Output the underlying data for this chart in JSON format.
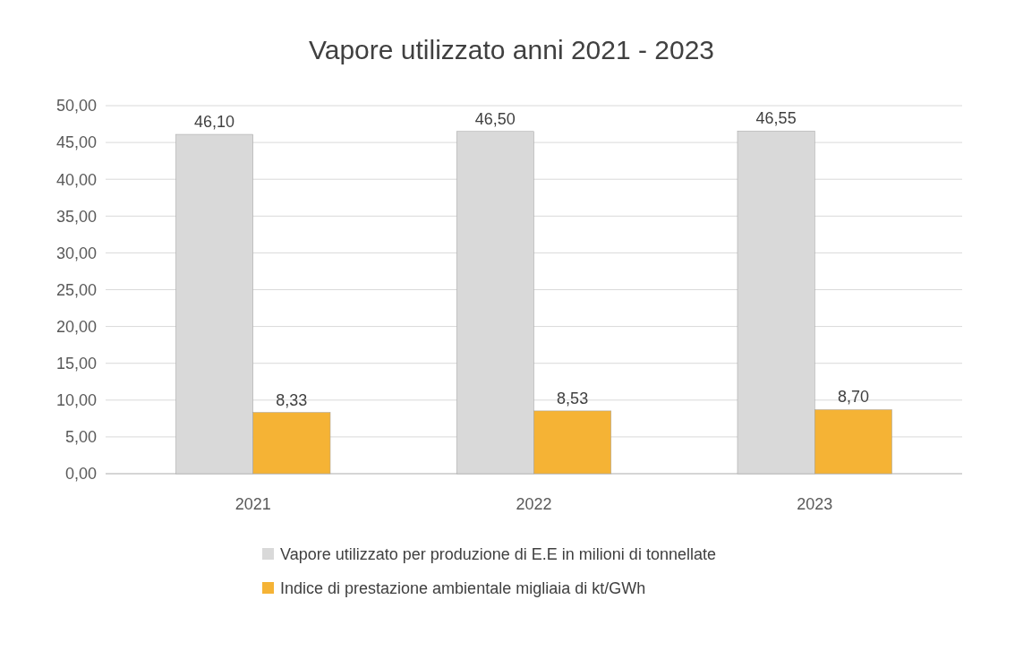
{
  "chart_data": {
    "type": "bar",
    "title": "Vapore utilizzato anni 2021 - 2023",
    "categories": [
      "2021",
      "2022",
      "2023"
    ],
    "series": [
      {
        "name": "Vapore utilizzato per produzione di E.E in milioni di tonnellate",
        "color": "#d9d9d9",
        "values": [
          46.1,
          46.5,
          46.55
        ],
        "value_labels": [
          "46,10",
          "46,50",
          "46,55"
        ]
      },
      {
        "name": "Indice di prestazione ambientale migliaia di kt/GWh",
        "color": "#f5b335",
        "values": [
          8.33,
          8.53,
          8.7
        ],
        "value_labels": [
          "8,33",
          "8,53",
          "8,70"
        ]
      }
    ],
    "ylim": [
      0,
      50
    ],
    "yticks": [
      {
        "value": 0,
        "label": "0,00"
      },
      {
        "value": 5,
        "label": "5,00"
      },
      {
        "value": 10,
        "label": "10,00"
      },
      {
        "value": 15,
        "label": "15,00"
      },
      {
        "value": 20,
        "label": "20,00"
      },
      {
        "value": 25,
        "label": "25,00"
      },
      {
        "value": 30,
        "label": "30,00"
      },
      {
        "value": 35,
        "label": "35,00"
      },
      {
        "value": 40,
        "label": "40,00"
      },
      {
        "value": 45,
        "label": "45,00"
      },
      {
        "value": 50,
        "label": "50,00"
      }
    ],
    "grid": "y",
    "legend": "bottom"
  }
}
